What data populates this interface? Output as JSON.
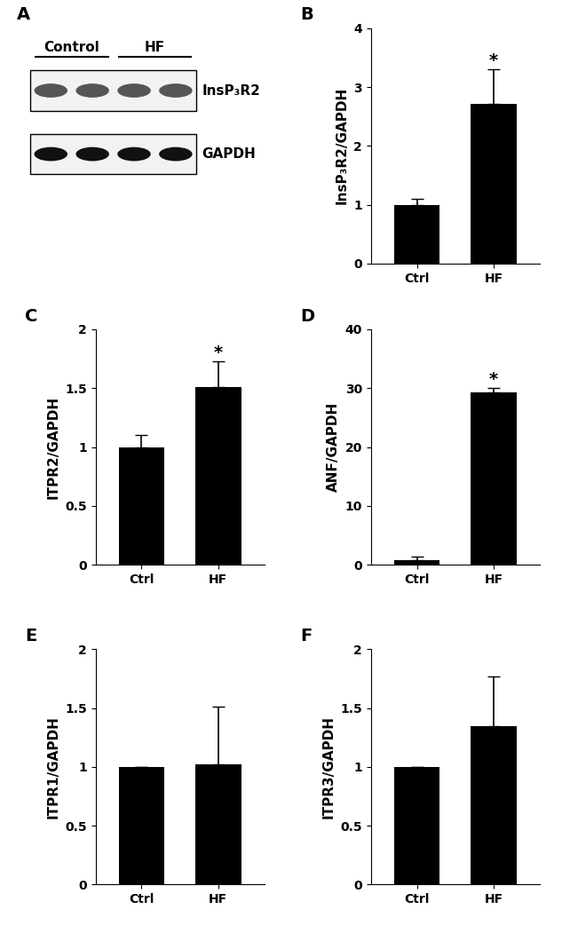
{
  "blot": {
    "panel": "A",
    "groups": [
      "Control",
      "HF"
    ],
    "lanes_per_group": 2,
    "rows": [
      "InsP₃R2",
      "GAPDH"
    ]
  },
  "chart_data": [
    {
      "type": "bar",
      "title": "B",
      "y_label": "InsP₃R2/GAPDH",
      "categories": [
        "Ctrl",
        "HF"
      ],
      "values": [
        1.0,
        2.72
      ],
      "errors": [
        0.1,
        0.58
      ],
      "color": "#000000",
      "ylim": [
        0,
        4
      ],
      "yticks": [
        0,
        1,
        2,
        3,
        4
      ],
      "annotations": [
        {
          "x": "HF",
          "text": "*"
        }
      ]
    },
    {
      "type": "bar",
      "title": "C",
      "y_label": "ITPR2/GAPDH",
      "categories": [
        "Ctrl",
        "HF"
      ],
      "values": [
        1.0,
        1.51
      ],
      "errors": [
        0.1,
        0.22
      ],
      "color": "#000000",
      "ylim": [
        0,
        2
      ],
      "yticks": [
        0,
        0.5,
        1,
        1.5,
        2
      ],
      "annotations": [
        {
          "x": "HF",
          "text": "*"
        }
      ]
    },
    {
      "type": "bar",
      "title": "D",
      "y_label": "ANF/GAPDH",
      "categories": [
        "Ctrl",
        "HF"
      ],
      "values": [
        0.8,
        29.3
      ],
      "errors": [
        0.6,
        0.8
      ],
      "color": "#000000",
      "ylim": [
        0,
        40
      ],
      "yticks": [
        0,
        10,
        20,
        30,
        40
      ],
      "annotations": [
        {
          "x": "HF",
          "text": "*"
        }
      ]
    },
    {
      "type": "bar",
      "title": "E",
      "y_label": "ITPR1/GAPDH",
      "categories": [
        "Ctrl",
        "HF"
      ],
      "values": [
        1.0,
        1.02
      ],
      "errors": [
        0,
        0.49
      ],
      "color": "#000000",
      "ylim": [
        0,
        2
      ],
      "yticks": [
        0,
        0.5,
        1,
        1.5,
        2
      ]
    },
    {
      "type": "bar",
      "title": "F",
      "y_label": "ITPR3/GAPDH",
      "categories": [
        "Ctrl",
        "HF"
      ],
      "values": [
        1.0,
        1.35
      ],
      "errors": [
        0,
        0.42
      ],
      "color": "#000000",
      "ylim": [
        0,
        2
      ],
      "yticks": [
        0,
        0.5,
        1,
        1.5,
        2
      ]
    }
  ]
}
